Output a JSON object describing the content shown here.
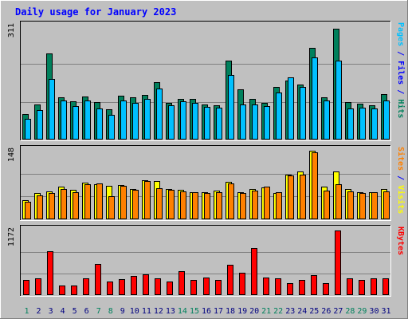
{
  "title": "Daily usage for January 2023",
  "colors": {
    "background": "#c0c0c0",
    "title": "#0000ff",
    "hits": "#00805c",
    "files": "#00c0ff",
    "pages": "#00ffff",
    "visits": "#ffff00",
    "sites": "#ff8000",
    "kbytes": "#ff0000",
    "weekend_day": "#00805c",
    "weekday_day": "#0000ff"
  },
  "chart_data": [
    {
      "type": "bar",
      "panel": "top",
      "ylabel_parts": [
        {
          "text": "Pages",
          "color": "#00c0ff"
        },
        {
          "text": " / ",
          "color": "#0000ff"
        },
        {
          "text": "Files",
          "color": "#0000ff"
        },
        {
          "text": " / ",
          "color": "#0000ff"
        },
        {
          "text": "Hits",
          "color": "#00805c"
        }
      ],
      "max_label": "311",
      "ymax": 311,
      "categories": [
        "1",
        "2",
        "3",
        "4",
        "5",
        "6",
        "7",
        "8",
        "9",
        "10",
        "11",
        "12",
        "13",
        "14",
        "15",
        "16",
        "17",
        "18",
        "19",
        "20",
        "21",
        "22",
        "23",
        "24",
        "25",
        "26",
        "27",
        "28",
        "29",
        "30",
        "31"
      ],
      "series": [
        {
          "name": "Hits",
          "values": [
            70,
            97,
            237,
            115,
            106,
            118,
            104,
            84,
            120,
            115,
            122,
            158,
            101,
            112,
            112,
            96,
            94,
            216,
            139,
            112,
            100,
            145,
            162,
            152,
            251,
            116,
            305,
            103,
            98,
            94,
            124
          ]
        },
        {
          "name": "Files",
          "values": [
            58,
            82,
            167,
            108,
            93,
            108,
            86,
            67,
            107,
            100,
            112,
            140,
            95,
            105,
            100,
            90,
            88,
            177,
            96,
            97,
            93,
            130,
            170,
            144,
            225,
            108,
            216,
            86,
            87,
            86,
            108
          ]
        }
      ]
    },
    {
      "type": "bar",
      "panel": "middle",
      "ylabel_parts": [
        {
          "text": "Sites",
          "color": "#ff8000"
        },
        {
          "text": " / ",
          "color": "#0000ff"
        },
        {
          "text": "Visits",
          "color": "#ffff00"
        }
      ],
      "max_label": "148",
      "ymax": 148,
      "categories": [
        "1",
        "2",
        "3",
        "4",
        "5",
        "6",
        "7",
        "8",
        "9",
        "10",
        "11",
        "12",
        "13",
        "14",
        "15",
        "16",
        "17",
        "18",
        "19",
        "20",
        "21",
        "22",
        "23",
        "24",
        "25",
        "26",
        "27",
        "28",
        "29",
        "30",
        "31"
      ],
      "series": [
        {
          "name": "Visits",
          "values": [
            41,
            56,
            60,
            70,
            63,
            79,
            75,
            73,
            74,
            65,
            85,
            82,
            66,
            63,
            59,
            59,
            62,
            81,
            59,
            65,
            69,
            57,
            97,
            103,
            148,
            71,
            104,
            65,
            59,
            59,
            65
          ]
        },
        {
          "name": "Sites",
          "values": [
            38,
            52,
            56,
            66,
            59,
            75,
            78,
            50,
            72,
            63,
            83,
            67,
            63,
            60,
            58,
            57,
            59,
            78,
            56,
            62,
            70,
            58,
            95,
            96,
            145,
            62,
            76,
            60,
            57,
            58,
            61
          ]
        }
      ]
    },
    {
      "type": "bar",
      "panel": "bottom",
      "ylabel_parts": [
        {
          "text": "KBytes",
          "color": "#ff0000"
        }
      ],
      "max_label": "1172",
      "ymax": 1172,
      "categories": [
        "1",
        "2",
        "3",
        "4",
        "5",
        "6",
        "7",
        "8",
        "9",
        "10",
        "11",
        "12",
        "13",
        "14",
        "15",
        "16",
        "17",
        "18",
        "19",
        "20",
        "21",
        "22",
        "23",
        "24",
        "25",
        "26",
        "27",
        "28",
        "29",
        "30",
        "31"
      ],
      "series": [
        {
          "name": "KBytes",
          "values": [
            270,
            300,
            790,
            170,
            170,
            300,
            570,
            240,
            290,
            350,
            370,
            300,
            250,
            440,
            280,
            320,
            280,
            550,
            410,
            850,
            320,
            300,
            220,
            280,
            360,
            210,
            1172,
            310,
            280,
            300,
            310
          ]
        }
      ]
    }
  ]
}
